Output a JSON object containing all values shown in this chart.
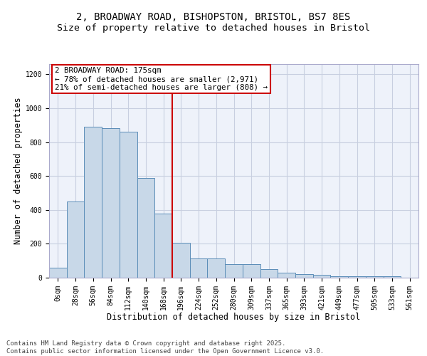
{
  "title_line1": "2, BROADWAY ROAD, BISHOPSTON, BRISTOL, BS7 8ES",
  "title_line2": "Size of property relative to detached houses in Bristol",
  "xlabel": "Distribution of detached houses by size in Bristol",
  "ylabel": "Number of detached properties",
  "categories": [
    "0sqm",
    "28sqm",
    "56sqm",
    "84sqm",
    "112sqm",
    "140sqm",
    "168sqm",
    "196sqm",
    "224sqm",
    "252sqm",
    "280sqm",
    "309sqm",
    "337sqm",
    "365sqm",
    "393sqm",
    "421sqm",
    "449sqm",
    "477sqm",
    "505sqm",
    "533sqm",
    "561sqm"
  ],
  "values": [
    60,
    450,
    890,
    880,
    860,
    590,
    380,
    205,
    115,
    115,
    80,
    80,
    50,
    30,
    20,
    15,
    10,
    10,
    10,
    10,
    0
  ],
  "bar_color": "#c8d8e8",
  "bar_edge_color": "#5b8db8",
  "vline_color": "#cc0000",
  "vline_index": 6.5,
  "annotation_box_text": "2 BROADWAY ROAD: 175sqm\n← 78% of detached houses are smaller (2,971)\n21% of semi-detached houses are larger (808) →",
  "annotation_box_color": "#cc0000",
  "ylim": [
    0,
    1260
  ],
  "yticks": [
    0,
    200,
    400,
    600,
    800,
    1000,
    1200
  ],
  "grid_color": "#c8cfe0",
  "background_color": "#eef2fa",
  "footer_text": "Contains HM Land Registry data © Crown copyright and database right 2025.\nContains public sector information licensed under the Open Government Licence v3.0.",
  "title_fontsize": 10,
  "subtitle_fontsize": 9.5,
  "label_fontsize": 8.5,
  "tick_fontsize": 7,
  "annotation_fontsize": 7.8,
  "footer_fontsize": 6.5
}
